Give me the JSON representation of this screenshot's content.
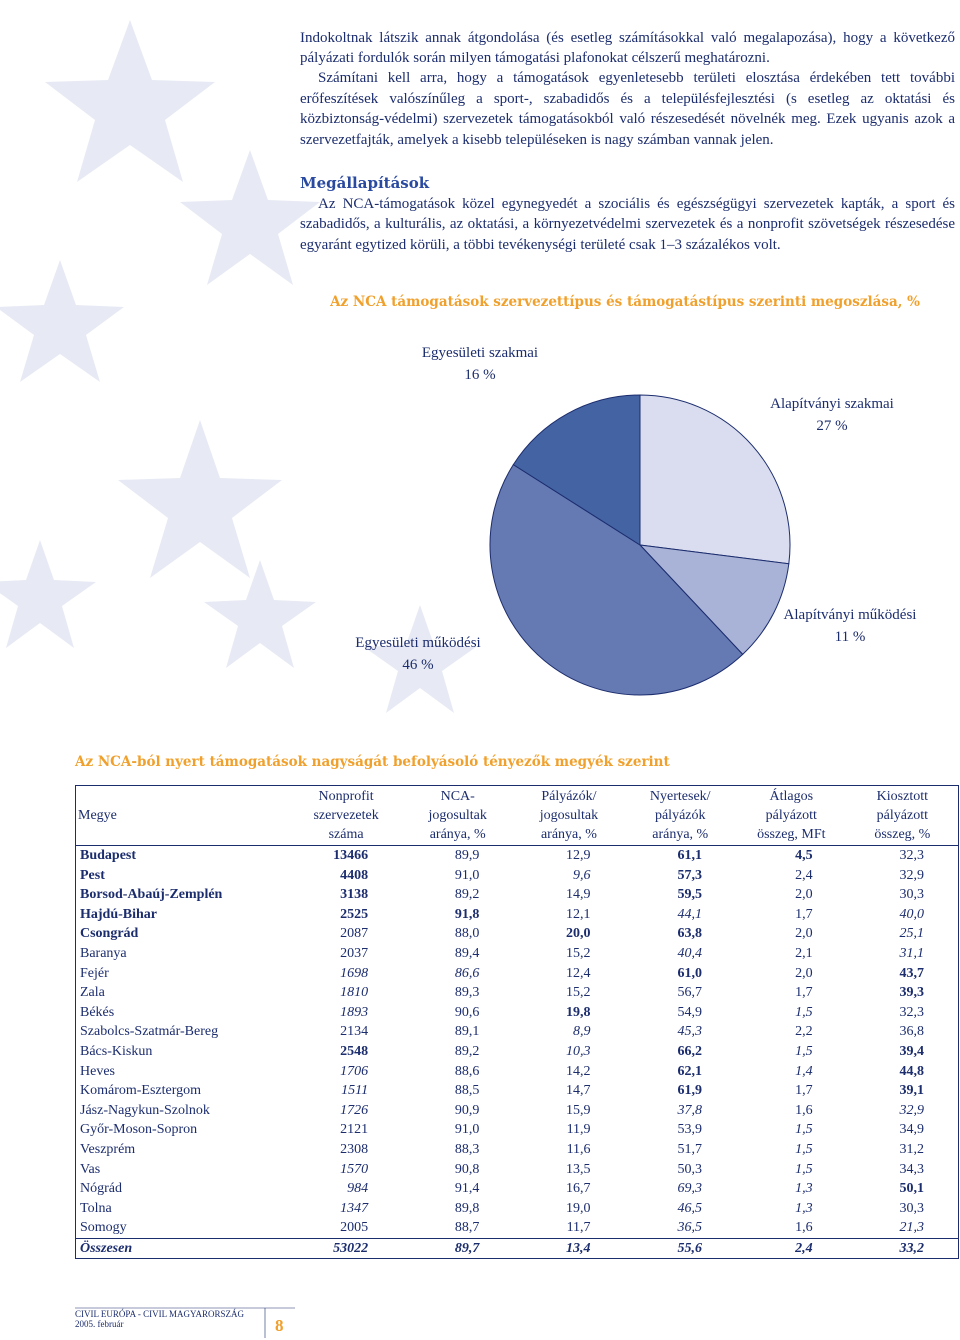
{
  "text": {
    "p1": "Indokoltnak látszik annak átgondolása (és esetleg számításokkal való megalapozása), hogy a következő pályázati fordulók során milyen támogatási plafonokat célszerű meghatározni.",
    "p2": "Számítani kell arra, hogy a támogatások egyenletesebb területi elosztása érdekében tett további erőfeszítések valószínűleg a sport-, szabadidős és a településfejlesztési (s esetleg az oktatási és közbiztonság-védelmi) szervezetek támogatásokból való részesedését növelnék meg. Ezek ugyanis azok a szervezetfajták, amelyek a kisebb településeken is nagy számban vannak jelen.",
    "heading": "Megállapítások",
    "p3": "Az NCA-támogatások közel egynegyedét a szociális és egészségügyi szervezetek kapták, a sport és szabadidős, a kulturális, az oktatási, a környezetvédelmi szervezetek és a nonprofit szövetségek részesedése egyaránt egytized körüli, a többi tevékenységi területé csak 1–3 százalékos volt."
  },
  "chart_data": {
    "type": "pie",
    "title": "Az NCA támogatások szervezettípus és támogatástípus szerinti megoszlása, %",
    "categories": [
      "Alapítványi szakmai",
      "Alapítványi működési",
      "Egyesületi működési",
      "Egyesületi szakmai"
    ],
    "values": [
      27,
      11,
      46,
      16
    ],
    "value_labels": [
      "27 %",
      "11 %",
      "46 %",
      "16 %"
    ],
    "colors": [
      "#d9ddef",
      "#a9b3d7",
      "#6579b3",
      "#4363a3"
    ]
  },
  "table": {
    "title": "Az NCA-ból nyert támogatások nagyságát befolyásoló tényezők megyék szerint",
    "header": [
      [
        "Megye"
      ],
      [
        "Nonprofit",
        "szervezetek",
        "száma"
      ],
      [
        "NCA-",
        "jogosultak",
        "aránya, %"
      ],
      [
        "Pályázók/",
        "jogosultak",
        "aránya, %"
      ],
      [
        "Nyertesek/",
        "pályázók",
        "aránya, %"
      ],
      [
        "Átlagos",
        "pályázott",
        "összeg, MFt"
      ],
      [
        "Kiosztott",
        "pályázott",
        "összeg, %"
      ]
    ],
    "rows": [
      [
        "Budapest",
        "13466",
        "89,9",
        "12,9",
        "61,1",
        "4,5",
        "32,3"
      ],
      [
        "Pest",
        "4408",
        "91,0",
        "9,6",
        "57,3",
        "2,4",
        "32,9"
      ],
      [
        "Borsod-Abaúj-Zemplén",
        "3138",
        "89,2",
        "14,9",
        "59,5",
        "2,0",
        "30,3"
      ],
      [
        "Hajdú-Bihar",
        "2525",
        "91,8",
        "12,1",
        "44,1",
        "1,7",
        "40,0"
      ],
      [
        "Csongrád",
        "2087",
        "88,0",
        "20,0",
        "63,8",
        "2,0",
        "25,1"
      ],
      [
        "Baranya",
        "2037",
        "89,4",
        "15,2",
        "40,4",
        "2,1",
        "31,1"
      ],
      [
        "Fejér",
        "1698",
        "86,6",
        "12,4",
        "61,0",
        "2,0",
        "43,7"
      ],
      [
        "Zala",
        "1810",
        "89,3",
        "15,2",
        "56,7",
        "1,7",
        "39,3"
      ],
      [
        "Békés",
        "1893",
        "90,6",
        "19,8",
        "54,9",
        "1,5",
        "32,3"
      ],
      [
        "Szabolcs-Szatmár-Bereg",
        "2134",
        "89,1",
        "8,9",
        "45,3",
        "2,2",
        "36,8"
      ],
      [
        "Bács-Kiskun",
        "2548",
        "89,2",
        "10,3",
        "66,2",
        "1,5",
        "39,4"
      ],
      [
        "Heves",
        "1706",
        "88,6",
        "14,2",
        "62,1",
        "1,4",
        "44,8"
      ],
      [
        "Komárom-Esztergom",
        "1511",
        "88,5",
        "14,7",
        "61,9",
        "1,7",
        "39,1"
      ],
      [
        "Jász-Nagykun-Szolnok",
        "1726",
        "90,9",
        "15,9",
        "37,8",
        "1,6",
        "32,9"
      ],
      [
        "Győr-Moson-Sopron",
        "2121",
        "91,0",
        "11,9",
        "53,9",
        "1,5",
        "34,9"
      ],
      [
        "Veszprém",
        "2308",
        "88,3",
        "11,6",
        "51,7",
        "1,5",
        "31,2"
      ],
      [
        "Vas",
        "1570",
        "90,8",
        "13,5",
        "50,3",
        "1,5",
        "34,3"
      ],
      [
        "Nógrád",
        "984",
        "91,4",
        "16,7",
        "69,3",
        "1,3",
        "50,1"
      ],
      [
        "Tolna",
        "1347",
        "89,8",
        "19,0",
        "46,5",
        "1,3",
        "30,3"
      ],
      [
        "Somogy",
        "2005",
        "88,7",
        "11,7",
        "36,5",
        "1,6",
        "21,3"
      ],
      [
        "Összesen",
        "53022",
        "89,7",
        "13,4",
        "55,6",
        "2,4",
        "33,2"
      ]
    ],
    "emphasis": [
      "bbnnbbn",
      "bbnibnn",
      "bbnnbnn",
      "bbbnini",
      "bnnbbni",
      "nnnnini",
      "niinbnb",
      "ninnnnb",
      "ninbnin",
      "nnniinn",
      "nbnibib",
      "ninnbib",
      "ninnbnb",
      "ninnini",
      "nnnnnin",
      "nnnnnin",
      "ninnnin",
      "ninniib",
      "ninniin",
      "nnnnini",
      "xxxxxxx"
    ]
  },
  "footer": {
    "line1": "CIVIL EURÓPA - CIVIL MAGYARORSZÁG",
    "line2": "2005. február",
    "page": "8"
  }
}
